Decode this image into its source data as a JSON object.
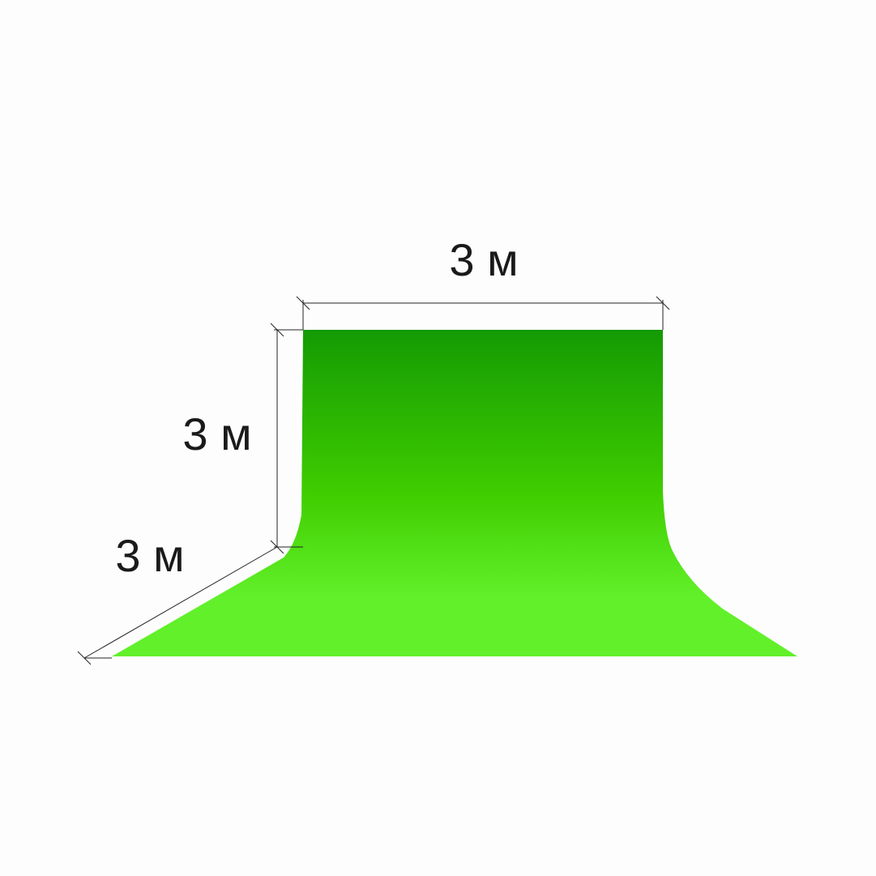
{
  "labels": {
    "width": "3 м",
    "height": "3 м",
    "depth": "3 м"
  },
  "colors": {
    "backdrop_top": "#149a03",
    "backdrop_middle": "#3fcd00",
    "backdrop_bottom": "#62f02a",
    "dimension_lines": "#222222",
    "background": "#fdfdfd"
  }
}
